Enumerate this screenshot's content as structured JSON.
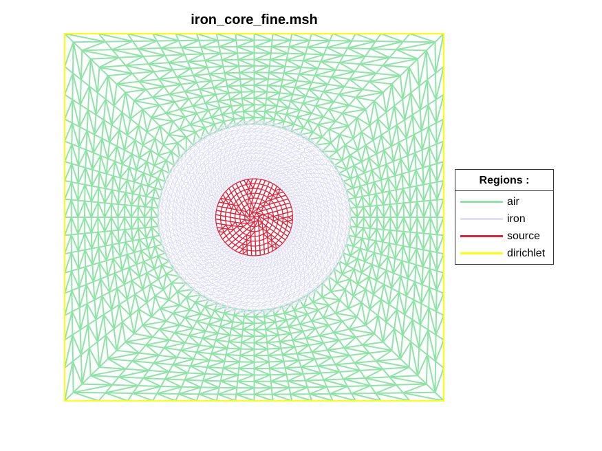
{
  "title": "iron_core_fine.msh",
  "legend": {
    "title": "Regions :",
    "items": [
      {
        "label": "air",
        "color": "#8ee4a6"
      },
      {
        "label": "iron",
        "color": "#e0e0f5"
      },
      {
        "label": "source",
        "color": "#e0233a"
      },
      {
        "label": "dirichlet",
        "color": "#ffff00"
      }
    ]
  },
  "chart_data": {
    "type": "mesh",
    "regions": [
      "air",
      "iron",
      "source",
      "dirichlet"
    ],
    "colors": {
      "air": "#8ee4a6",
      "iron": "#e0e0f5",
      "source": "#e0233a",
      "dirichlet": "#ffff00"
    },
    "legend_position": "right"
  }
}
